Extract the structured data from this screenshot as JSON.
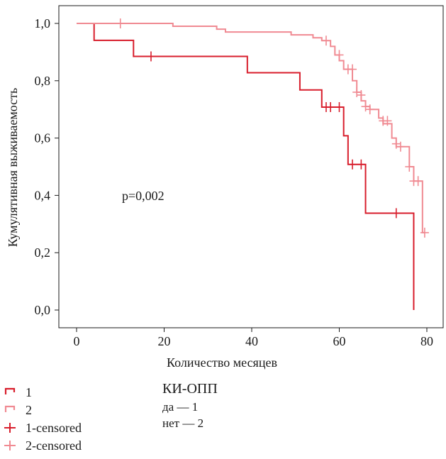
{
  "chart_data": {
    "type": "line",
    "xlabel": "Количество месяцев",
    "ylabel": "Кумулятивная выживаемость",
    "xlim": [
      0,
      80
    ],
    "ylim": [
      0,
      1
    ],
    "x_ticks": [
      0,
      20,
      40,
      60,
      80
    ],
    "x_tick_labels": [
      "0",
      "20",
      "40",
      "60",
      "80"
    ],
    "y_ticks": [
      0,
      0.2,
      0.4,
      0.6,
      0.8,
      1.0
    ],
    "y_tick_labels": [
      "0,0",
      "0,2",
      "0,4",
      "0,6",
      "0,8",
      "1,0"
    ],
    "grid": false,
    "annotation": "p=0,002",
    "series": [
      {
        "name": "1",
        "color": "#d81e2c",
        "steps": [
          [
            0,
            1.0
          ],
          [
            4,
            0.941
          ],
          [
            13,
            0.885
          ],
          [
            39,
            0.828
          ],
          [
            51,
            0.768
          ],
          [
            56,
            0.708
          ],
          [
            61,
            0.608
          ],
          [
            62,
            0.508
          ],
          [
            66,
            0.338
          ],
          [
            77,
            0.0
          ]
        ],
        "censored": [
          [
            17,
            0.885
          ],
          [
            57,
            0.708
          ],
          [
            58,
            0.708
          ],
          [
            60,
            0.708
          ],
          [
            63,
            0.508
          ],
          [
            65,
            0.508
          ],
          [
            73,
            0.338
          ]
        ]
      },
      {
        "name": "2",
        "color": "#f08a92",
        "steps": [
          [
            0,
            1.0
          ],
          [
            22,
            0.99
          ],
          [
            32,
            0.98
          ],
          [
            34,
            0.97
          ],
          [
            49,
            0.96
          ],
          [
            54,
            0.95
          ],
          [
            56,
            0.94
          ],
          [
            58,
            0.92
          ],
          [
            59,
            0.89
          ],
          [
            60,
            0.87
          ],
          [
            61,
            0.84
          ],
          [
            63,
            0.8
          ],
          [
            64,
            0.76
          ],
          [
            65,
            0.73
          ],
          [
            66,
            0.71
          ],
          [
            67,
            0.7
          ],
          [
            69,
            0.67
          ],
          [
            70,
            0.65
          ],
          [
            72,
            0.6
          ],
          [
            73,
            0.57
          ],
          [
            76,
            0.5
          ],
          [
            77,
            0.45
          ],
          [
            79,
            0.27
          ]
        ],
        "censored": [
          [
            10,
            1.0
          ],
          [
            57,
            0.94
          ],
          [
            60,
            0.89
          ],
          [
            62,
            0.84
          ],
          [
            63,
            0.84
          ],
          [
            64,
            0.76
          ],
          [
            65,
            0.75
          ],
          [
            66,
            0.71
          ],
          [
            67,
            0.7
          ],
          [
            70,
            0.66
          ],
          [
            71,
            0.66
          ],
          [
            73,
            0.58
          ],
          [
            74,
            0.57
          ],
          [
            76,
            0.5
          ],
          [
            77,
            0.45
          ],
          [
            78,
            0.45
          ],
          [
            79.5,
            0.27
          ]
        ]
      }
    ],
    "legend": {
      "items": [
        {
          "label": "1",
          "kind": "line",
          "color": "#d81e2c"
        },
        {
          "label": "2",
          "kind": "line",
          "color": "#f08a92"
        },
        {
          "label": "1-censored",
          "kind": "censor",
          "color": "#d81e2c"
        },
        {
          "label": "2-censored",
          "kind": "censor",
          "color": "#f08a92"
        }
      ]
    },
    "group_key": {
      "title": "КИ-ОПП",
      "items": [
        "да — 1",
        "нет — 2"
      ]
    }
  }
}
